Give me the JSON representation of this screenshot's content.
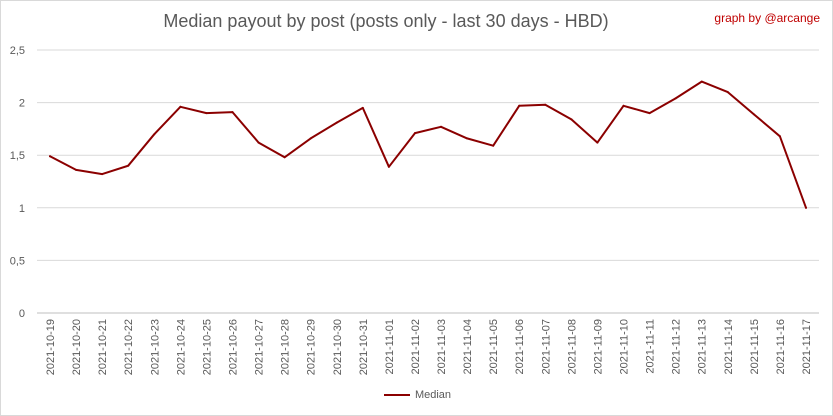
{
  "title": "Median payout by post (posts only - last 30 days - HBD)",
  "credit": "graph by @arcange",
  "legend_label": "Median",
  "chart_data": {
    "type": "line",
    "title": "Median payout by post (posts only - last 30 days - HBD)",
    "xlabel": "",
    "ylabel": "",
    "ylim": [
      0,
      2.5
    ],
    "yticks": [
      "0",
      "0,5",
      "1",
      "1,5",
      "2",
      "2,5"
    ],
    "grid": true,
    "legend_position": "bottom",
    "categories": [
      "2021-10-19",
      "2021-10-20",
      "2021-10-21",
      "2021-10-22",
      "2021-10-23",
      "2021-10-24",
      "2021-10-25",
      "2021-10-26",
      "2021-10-27",
      "2021-10-28",
      "2021-10-29",
      "2021-10-30",
      "2021-10-31",
      "2021-11-01",
      "2021-11-02",
      "2021-11-03",
      "2021-11-04",
      "2021-11-05",
      "2021-11-06",
      "2021-11-07",
      "2021-11-08",
      "2021-11-09",
      "2021-11-10",
      "2021-11-11",
      "2021-11-12",
      "2021-11-13",
      "2021-11-14",
      "2021-11-15",
      "2021-11-16",
      "2021-11-17"
    ],
    "series": [
      {
        "name": "Median",
        "color": "#8b0000",
        "values": [
          1.49,
          1.36,
          1.32,
          1.4,
          1.7,
          1.96,
          1.9,
          1.91,
          1.62,
          1.48,
          1.66,
          1.81,
          1.95,
          1.39,
          1.71,
          1.77,
          1.66,
          1.59,
          1.97,
          1.98,
          1.84,
          1.62,
          1.97,
          1.9,
          2.04,
          2.2,
          2.1,
          1.89,
          1.68,
          1.0
        ]
      }
    ]
  }
}
